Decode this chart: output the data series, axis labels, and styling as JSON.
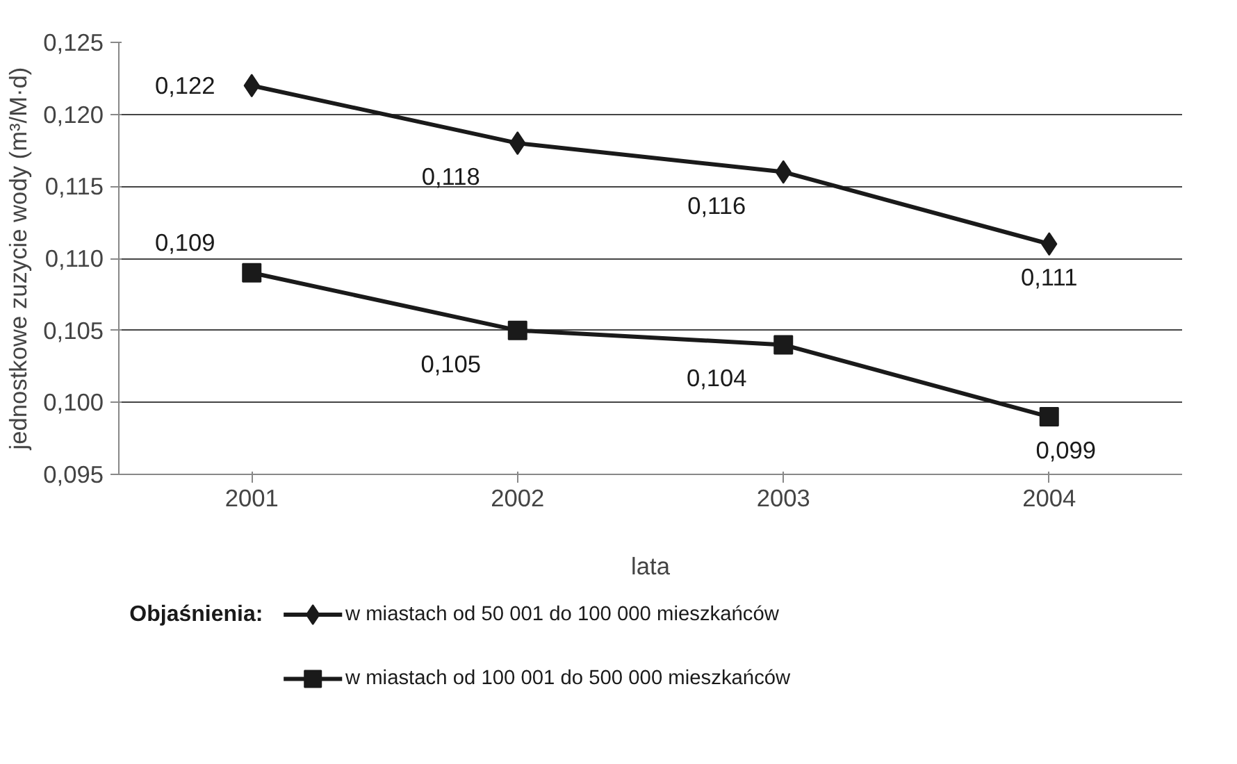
{
  "chart_data": {
    "type": "line",
    "categories": [
      "2001",
      "2002",
      "2003",
      "2004"
    ],
    "xlabel": "lata",
    "ylabel": "jednostkowe zuzycie wody (m³/M·d)",
    "legend_title": "Objaśnienia:",
    "series": [
      {
        "name": "w miastach od 50 001 do 100 000 mieszkańców",
        "color": "#1a1a1a",
        "marker": "diamond",
        "values": [
          0.122,
          0.118,
          0.116,
          0.111
        ],
        "value_labels": [
          "0,122",
          "0,118",
          "0,116",
          "0,111"
        ]
      },
      {
        "name": "w miastach od 100 001 do 500 000 mieszkańców",
        "color": "#1a1a1a",
        "marker": "square",
        "values": [
          0.109,
          0.105,
          0.104,
          0.099
        ],
        "value_labels": [
          "0,109",
          "0,105",
          "0,104",
          "0,099"
        ]
      }
    ],
    "ylim": [
      0.095,
      0.125
    ],
    "yticks": [
      {
        "value": 0.095,
        "label": "0,095"
      },
      {
        "value": 0.1,
        "label": "0,100"
      },
      {
        "value": 0.105,
        "label": "0,105"
      },
      {
        "value": 0.11,
        "label": "0,110"
      },
      {
        "value": 0.115,
        "label": "0,115"
      },
      {
        "value": 0.12,
        "label": "0,120"
      },
      {
        "value": 0.125,
        "label": "0,125"
      }
    ],
    "grid": "y",
    "legend": "bottom",
    "line_style": "solid"
  }
}
